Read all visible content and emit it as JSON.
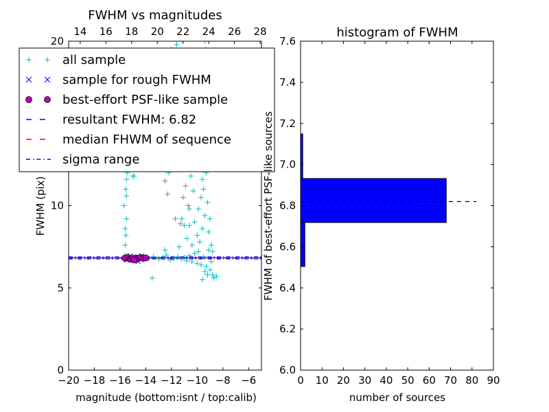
{
  "chart_data": [
    {
      "type": "scatter",
      "title": "FWHM vs magnitudes",
      "xlabel": "magnitude (bottom:isnt / top:calib)",
      "ylabel": "FWHM (pix)",
      "xlim": [
        -20,
        -5
      ],
      "ylim": [
        0,
        20
      ],
      "xticks": [
        -20,
        -18,
        -16,
        -14,
        -12,
        -10,
        -8,
        -6
      ],
      "xtick_labels": [
        "−20",
        "−18",
        "−16",
        "−14",
        "−12",
        "−10",
        "−8",
        "−6"
      ],
      "yticks": [
        0,
        5,
        10,
        15,
        20
      ],
      "ytick_labels": [
        "0",
        "5",
        "10",
        "15",
        "20"
      ],
      "top_xlim": [
        13.1,
        28.1
      ],
      "top_xticks": [
        14,
        16,
        18,
        20,
        22,
        24,
        26,
        28
      ],
      "top_xtick_labels": [
        "14",
        "16",
        "18",
        "20",
        "22",
        "24",
        "26",
        "28"
      ],
      "legend_position": "upper-left",
      "legend": [
        {
          "label": "all sample",
          "marker": "+",
          "color": "#00bfbf"
        },
        {
          "label": "sample for rough FWHM",
          "marker": "x",
          "color": "#0000ff"
        },
        {
          "label": "best-effort PSF-like sample",
          "marker": "o",
          "color": "#bf00bf"
        },
        {
          "label": "resultant FWHM: 6.82",
          "marker": "dashed",
          "color": "#0000ff"
        },
        {
          "label": "median FHWM of sequence",
          "marker": "dashed",
          "color": "#ff0000"
        },
        {
          "label": "sigma range",
          "marker": "dashdot",
          "color": "#0000ff"
        }
      ],
      "lines": {
        "resultant": 6.82,
        "median": 6.83,
        "sigma_low": 6.76,
        "sigma_high": 6.89
      },
      "series": [
        {
          "name": "all sample",
          "color": "#00bfbf",
          "points": [
            [
              -15.6,
              7.0
            ],
            [
              -15.6,
              7.6
            ],
            [
              -15.55,
              8.2
            ],
            [
              -15.6,
              8.6
            ],
            [
              -15.5,
              9.2
            ],
            [
              -15.7,
              10.0
            ],
            [
              -15.5,
              10.6
            ],
            [
              -15.55,
              11.0
            ],
            [
              -15.5,
              11.6
            ],
            [
              -15.45,
              12.0
            ],
            [
              -15.5,
              12.6
            ],
            [
              -15.5,
              13.1
            ],
            [
              -15.0,
              11.8
            ],
            [
              -14.9,
              11.8
            ],
            [
              -15.4,
              6.9
            ],
            [
              -15.0,
              6.75
            ],
            [
              -14.6,
              6.85
            ],
            [
              -14.2,
              6.7
            ],
            [
              -13.8,
              6.8
            ],
            [
              -13.4,
              6.9
            ],
            [
              -13.0,
              6.75
            ],
            [
              -12.7,
              6.85
            ],
            [
              -12.4,
              7.0
            ],
            [
              -12.1,
              6.7
            ],
            [
              -11.8,
              6.8
            ],
            [
              -11.5,
              6.9
            ],
            [
              -11.2,
              6.75
            ],
            [
              -11.0,
              6.85
            ],
            [
              -10.8,
              6.65
            ],
            [
              -10.6,
              6.95
            ],
            [
              -10.4,
              6.6
            ],
            [
              -10.2,
              7.1
            ],
            [
              -10.0,
              6.5
            ],
            [
              -9.9,
              7.2
            ],
            [
              -9.7,
              6.4
            ],
            [
              -9.5,
              6.9
            ],
            [
              -9.3,
              6.3
            ],
            [
              -9.1,
              7.3
            ],
            [
              -9.0,
              6.1
            ],
            [
              -8.9,
              6.6
            ],
            [
              -8.8,
              5.8
            ],
            [
              -8.7,
              5.6
            ],
            [
              -8.5,
              5.7
            ],
            [
              -9.2,
              5.8
            ],
            [
              -9.4,
              6.0
            ],
            [
              -9.6,
              5.5
            ],
            [
              -12.5,
              7.3
            ],
            [
              -13.5,
              5.6
            ],
            [
              -10.8,
              8.0
            ],
            [
              -10.6,
              8.8
            ],
            [
              -10.4,
              7.6
            ],
            [
              -10.2,
              9.0
            ],
            [
              -10.0,
              8.2
            ],
            [
              -9.9,
              9.8
            ],
            [
              -9.8,
              7.8
            ],
            [
              -9.7,
              10.5
            ],
            [
              -9.6,
              8.6
            ],
            [
              -9.5,
              11.0
            ],
            [
              -9.4,
              9.4
            ],
            [
              -9.3,
              12.0
            ],
            [
              -9.2,
              10.2
            ],
            [
              -9.1,
              8.4
            ],
            [
              -9.0,
              9.2
            ],
            [
              -8.9,
              7.6
            ],
            [
              -8.8,
              7.2
            ],
            [
              -9.5,
              12.6
            ],
            [
              -9.3,
              13.0
            ],
            [
              -9.6,
              11.6
            ],
            [
              -10.3,
              10.9
            ],
            [
              -11.0,
              8.8
            ],
            [
              -11.4,
              7.5
            ],
            [
              -10.5,
              11.8
            ],
            [
              -9.8,
              12.4
            ],
            [
              -9.7,
              14.0
            ],
            [
              -9.4,
              15.5
            ],
            [
              -9.6,
              16.8
            ],
            [
              -9.5,
              18.0
            ],
            [
              -9.3,
              19.5
            ],
            [
              -9.4,
              20.0
            ],
            [
              -11.6,
              19.8
            ],
            [
              -12.0,
              19.5
            ],
            [
              -9.8,
              17.2
            ],
            [
              -10.6,
              9.8
            ],
            [
              -11.2,
              9.2
            ],
            [
              -12.2,
              12.0
            ]
          ]
        },
        {
          "name": "rough (grey)",
          "color": "#808080",
          "points": [
            [
              -11.3,
              8.9
            ],
            [
              -11.1,
              10.5
            ],
            [
              -10.7,
              10.0
            ],
            [
              -12.5,
              11.5
            ],
            [
              -12.3,
              10.7
            ],
            [
              -11.7,
              9.2
            ],
            [
              -10.9,
              11.2
            ]
          ]
        },
        {
          "name": "sample for rough FWHM",
          "color": "#0000ff",
          "points": [
            [
              -15.2,
              6.95
            ],
            [
              -14.6,
              6.6
            ],
            [
              -14.3,
              6.95
            ],
            [
              -15.5,
              6.7
            ]
          ]
        },
        {
          "name": "best-effort PSF-like sample",
          "color": "#bf00bf",
          "points": [
            [
              -15.6,
              6.8
            ],
            [
              -15.4,
              6.85
            ],
            [
              -15.2,
              6.75
            ],
            [
              -15.0,
              6.8
            ],
            [
              -14.8,
              6.82
            ],
            [
              -14.6,
              6.78
            ],
            [
              -14.4,
              6.85
            ],
            [
              -14.2,
              6.8
            ],
            [
              -14.0,
              6.82
            ],
            [
              -14.9,
              6.7
            ]
          ]
        }
      ]
    },
    {
      "type": "bar",
      "orientation": "horizontal",
      "title": "histogram of FWHM",
      "xlabel": "number of sources",
      "ylabel": "FWHM of best-effort PSF-like sources",
      "xlim": [
        0,
        90
      ],
      "ylim": [
        6.0,
        7.6
      ],
      "xticks": [
        0,
        10,
        20,
        30,
        40,
        50,
        60,
        70,
        80,
        90
      ],
      "yticks": [
        6.0,
        6.2,
        6.4,
        6.6,
        6.8,
        7.0,
        7.2,
        7.4,
        7.6
      ],
      "ytick_labels": [
        "6.0",
        "6.2",
        "6.4",
        "6.6",
        "6.8",
        "7.0",
        "7.2",
        "7.4",
        "7.6"
      ],
      "bin_edges": [
        6.504,
        6.718,
        6.932,
        7.149
      ],
      "counts": [
        2,
        68,
        1
      ],
      "bar_color": "#0000ff",
      "reference_line": {
        "value": 6.82,
        "x_extent": [
          0,
          82
        ],
        "style": "dashed",
        "color": "#000000"
      }
    }
  ]
}
